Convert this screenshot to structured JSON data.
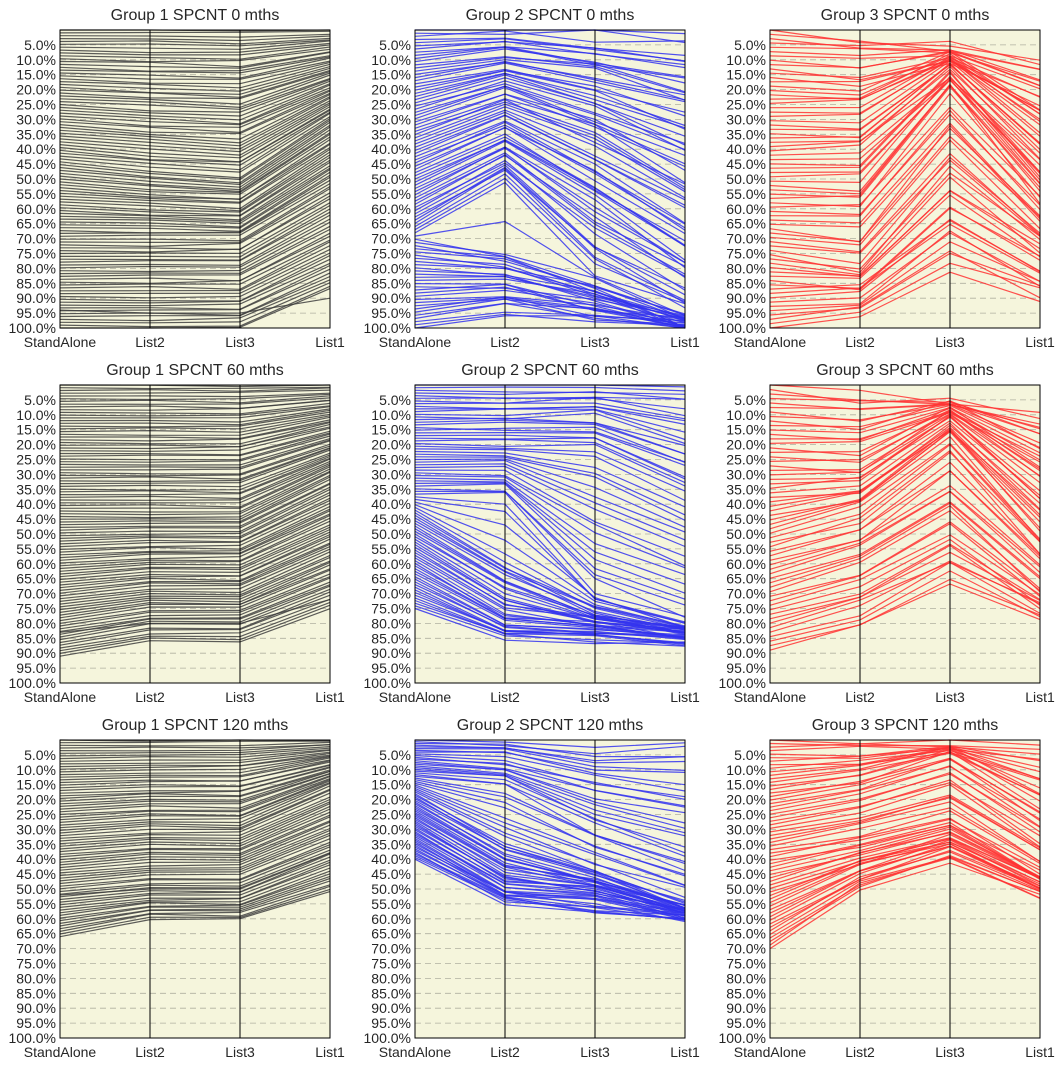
{
  "figure": {
    "background": "#ffffff",
    "panel_background": "#f5f5dc",
    "grid_color": "#b0b0a0"
  },
  "chart_data": [
    {
      "type": "parallel",
      "row": 0,
      "col": 0,
      "title": "Group 1 SPCNT 0 mths",
      "color": "#404040",
      "axes": [
        "StandAlone",
        "List2",
        "List3",
        "List1"
      ],
      "ylim": [
        0,
        100
      ],
      "yinvert": true,
      "yticks": [
        "5.0%",
        "10.0%",
        "15.0%",
        "20.0%",
        "25.0%",
        "30.0%",
        "35.0%",
        "40.0%",
        "45.0%",
        "50.0%",
        "55.0%",
        "60.0%",
        "65.0%",
        "70.0%",
        "75.0%",
        "80.0%",
        "85.0%",
        "90.0%",
        "95.0%",
        "100.0%"
      ],
      "series": {
        "count": 105,
        "anchors": [
          [
            0,
            0,
            0,
            0
          ],
          [
            45,
            48,
            50,
            30
          ],
          [
            70,
            70,
            70,
            52
          ],
          [
            100,
            100,
            100,
            87
          ]
        ],
        "jitter": [
          0,
          0.5,
          0.6,
          0.3
        ],
        "gap": {
          "value": 94,
          "target": [
            94,
            95,
            95,
            90
          ]
        }
      }
    },
    {
      "type": "parallel",
      "row": 0,
      "col": 1,
      "title": "Group 2 SPCNT 0 mths",
      "color": "#3333ee",
      "axes": [
        "StandAlone",
        "List2",
        "List3",
        "List1"
      ],
      "ylim": [
        0,
        100
      ],
      "yinvert": true,
      "yticks": [
        "5.0%",
        "10.0%",
        "15.0%",
        "20.0%",
        "25.0%",
        "30.0%",
        "35.0%",
        "40.0%",
        "45.0%",
        "50.0%",
        "55.0%",
        "60.0%",
        "65.0%",
        "70.0%",
        "75.0%",
        "80.0%",
        "85.0%",
        "90.0%",
        "95.0%",
        "100.0%"
      ],
      "series": {
        "count": 95,
        "anchors": [
          [
            0,
            0,
            1,
            2
          ],
          [
            30,
            20,
            30,
            45
          ],
          [
            55,
            40,
            60,
            80
          ],
          [
            68,
            50,
            80,
            94
          ],
          [
            70,
            75,
            85,
            97
          ],
          [
            100,
            95,
            97,
            100
          ]
        ],
        "jitter": [
          0,
          1.2,
          2.5,
          2.5
        ],
        "gap": null
      }
    },
    {
      "type": "parallel",
      "row": 0,
      "col": 2,
      "title": "Group 3 SPCNT 0 mths",
      "color": "#ff3333",
      "axes": [
        "StandAlone",
        "List2",
        "List3",
        "List1"
      ],
      "ylim": [
        0,
        100
      ],
      "yinvert": true,
      "yticks": [
        "5.0%",
        "10.0%",
        "15.0%",
        "20.0%",
        "25.0%",
        "30.0%",
        "35.0%",
        "40.0%",
        "45.0%",
        "50.0%",
        "55.0%",
        "60.0%",
        "65.0%",
        "70.0%",
        "75.0%",
        "80.0%",
        "85.0%",
        "90.0%",
        "95.0%",
        "100.0%"
      ],
      "series": {
        "count": 70,
        "anchors": [
          [
            0,
            3,
            5,
            10
          ],
          [
            30,
            30,
            12,
            35
          ],
          [
            55,
            55,
            18,
            55
          ],
          [
            75,
            80,
            45,
            70
          ],
          [
            100,
            95,
            80,
            90
          ]
        ],
        "jitter": [
          0,
          2,
          2.5,
          2.5
        ],
        "gap": null
      }
    },
    {
      "type": "parallel",
      "row": 1,
      "col": 0,
      "title": "Group 1 SPCNT 60 mths",
      "color": "#404040",
      "axes": [
        "StandAlone",
        "List2",
        "List3",
        "List1"
      ],
      "ylim": [
        0,
        100
      ],
      "yinvert": true,
      "yticks": [
        "5.0%",
        "10.0%",
        "15.0%",
        "20.0%",
        "25.0%",
        "30.0%",
        "35.0%",
        "40.0%",
        "45.0%",
        "50.0%",
        "55.0%",
        "60.0%",
        "65.0%",
        "70.0%",
        "75.0%",
        "80.0%",
        "85.0%",
        "90.0%",
        "95.0%",
        "100.0%"
      ],
      "series": {
        "count": 100,
        "anchors": [
          [
            0,
            0,
            0,
            0
          ],
          [
            45,
            45,
            45,
            30
          ],
          [
            85,
            80,
            80,
            68
          ],
          [
            91,
            86,
            86,
            75
          ]
        ],
        "jitter": [
          0,
          0.4,
          0.5,
          0.3
        ],
        "gap": {
          "value": 82,
          "target": [
            83,
            80,
            80,
            72
          ]
        }
      }
    },
    {
      "type": "parallel",
      "row": 1,
      "col": 1,
      "title": "Group 2 SPCNT 60 mths",
      "color": "#3333ee",
      "axes": [
        "StandAlone",
        "List2",
        "List3",
        "List1"
      ],
      "ylim": [
        0,
        100
      ],
      "yinvert": true,
      "yticks": [
        "5.0%",
        "10.0%",
        "15.0%",
        "20.0%",
        "25.0%",
        "30.0%",
        "35.0%",
        "40.0%",
        "45.0%",
        "50.0%",
        "55.0%",
        "60.0%",
        "65.0%",
        "70.0%",
        "75.0%",
        "80.0%",
        "85.0%",
        "90.0%",
        "95.0%",
        "100.0%"
      ],
      "series": {
        "count": 85,
        "anchors": [
          [
            0,
            0,
            0,
            0
          ],
          [
            20,
            20,
            20,
            35
          ],
          [
            37,
            37,
            70,
            80
          ],
          [
            42,
            60,
            75,
            82
          ],
          [
            60,
            78,
            80,
            84
          ],
          [
            75,
            85,
            86,
            87
          ]
        ],
        "jitter": [
          0,
          1,
          1.5,
          1.5
        ],
        "gap": null
      }
    },
    {
      "type": "parallel",
      "row": 1,
      "col": 2,
      "title": "Group 3 SPCNT 60 mths",
      "color": "#ff3333",
      "axes": [
        "StandAlone",
        "List2",
        "List3",
        "List1"
      ],
      "ylim": [
        0,
        100
      ],
      "yinvert": true,
      "yticks": [
        "5.0%",
        "10.0%",
        "15.0%",
        "20.0%",
        "25.0%",
        "30.0%",
        "35.0%",
        "40.0%",
        "45.0%",
        "50.0%",
        "55.0%",
        "60.0%",
        "65.0%",
        "70.0%",
        "75.0%",
        "80.0%",
        "85.0%",
        "90.0%",
        "95.0%",
        "100.0%"
      ],
      "series": {
        "count": 60,
        "anchors": [
          [
            0,
            3,
            5,
            10
          ],
          [
            30,
            30,
            10,
            35
          ],
          [
            50,
            42,
            18,
            52
          ],
          [
            70,
            62,
            45,
            70
          ],
          [
            89,
            80,
            66,
            78
          ]
        ],
        "jitter": [
          0,
          2,
          2,
          2
        ],
        "gap": null
      }
    },
    {
      "type": "parallel",
      "row": 2,
      "col": 0,
      "title": "Group 1 SPCNT 120 mths",
      "color": "#404040",
      "axes": [
        "StandAlone",
        "List2",
        "List3",
        "List1"
      ],
      "ylim": [
        0,
        100
      ],
      "yinvert": true,
      "yticks": [
        "5.0%",
        "10.0%",
        "15.0%",
        "20.0%",
        "25.0%",
        "30.0%",
        "35.0%",
        "40.0%",
        "45.0%",
        "50.0%",
        "55.0%",
        "60.0%",
        "65.0%",
        "70.0%",
        "75.0%",
        "80.0%",
        "85.0%",
        "90.0%",
        "95.0%",
        "100.0%"
      ],
      "series": {
        "count": 75,
        "anchors": [
          [
            0,
            0,
            0,
            0
          ],
          [
            30,
            28,
            28,
            15
          ],
          [
            55,
            52,
            52,
            40
          ],
          [
            66,
            60,
            60,
            51
          ]
        ],
        "jitter": [
          0,
          0.4,
          0.5,
          0.3
        ],
        "gap": {
          "value": 52,
          "target": [
            52,
            50,
            50,
            38
          ]
        }
      }
    },
    {
      "type": "parallel",
      "row": 2,
      "col": 1,
      "title": "Group 2 SPCNT 120 mths",
      "color": "#3333ee",
      "axes": [
        "StandAlone",
        "List2",
        "List3",
        "List1"
      ],
      "ylim": [
        0,
        100
      ],
      "yinvert": true,
      "yticks": [
        "5.0%",
        "10.0%",
        "15.0%",
        "20.0%",
        "25.0%",
        "30.0%",
        "35.0%",
        "40.0%",
        "45.0%",
        "50.0%",
        "55.0%",
        "60.0%",
        "65.0%",
        "70.0%",
        "75.0%",
        "80.0%",
        "85.0%",
        "90.0%",
        "95.0%",
        "100.0%"
      ],
      "series": {
        "count": 70,
        "anchors": [
          [
            0,
            0,
            2,
            1
          ],
          [
            12,
            15,
            30,
            40
          ],
          [
            18,
            35,
            45,
            55
          ],
          [
            30,
            48,
            50,
            58
          ],
          [
            40,
            55,
            58,
            60
          ]
        ],
        "jitter": [
          0,
          1.2,
          1.5,
          1.5
        ],
        "gap": null
      }
    },
    {
      "type": "parallel",
      "row": 2,
      "col": 2,
      "title": "Group 3 SPCNT 120 mths",
      "color": "#ff3333",
      "axes": [
        "StandAlone",
        "List2",
        "List3",
        "List1"
      ],
      "ylim": [
        0,
        100
      ],
      "yinvert": true,
      "yticks": [
        "5.0%",
        "10.0%",
        "15.0%",
        "20.0%",
        "25.0%",
        "30.0%",
        "35.0%",
        "40.0%",
        "45.0%",
        "50.0%",
        "55.0%",
        "60.0%",
        "65.0%",
        "70.0%",
        "75.0%",
        "80.0%",
        "85.0%",
        "90.0%",
        "95.0%",
        "100.0%"
      ],
      "series": {
        "count": 60,
        "anchors": [
          [
            0,
            1,
            1,
            3
          ],
          [
            20,
            15,
            5,
            25
          ],
          [
            40,
            35,
            28,
            45
          ],
          [
            70,
            50,
            40,
            53
          ]
        ],
        "jitter": [
          0,
          1.5,
          1.5,
          1.5
        ],
        "gap": null
      }
    }
  ]
}
